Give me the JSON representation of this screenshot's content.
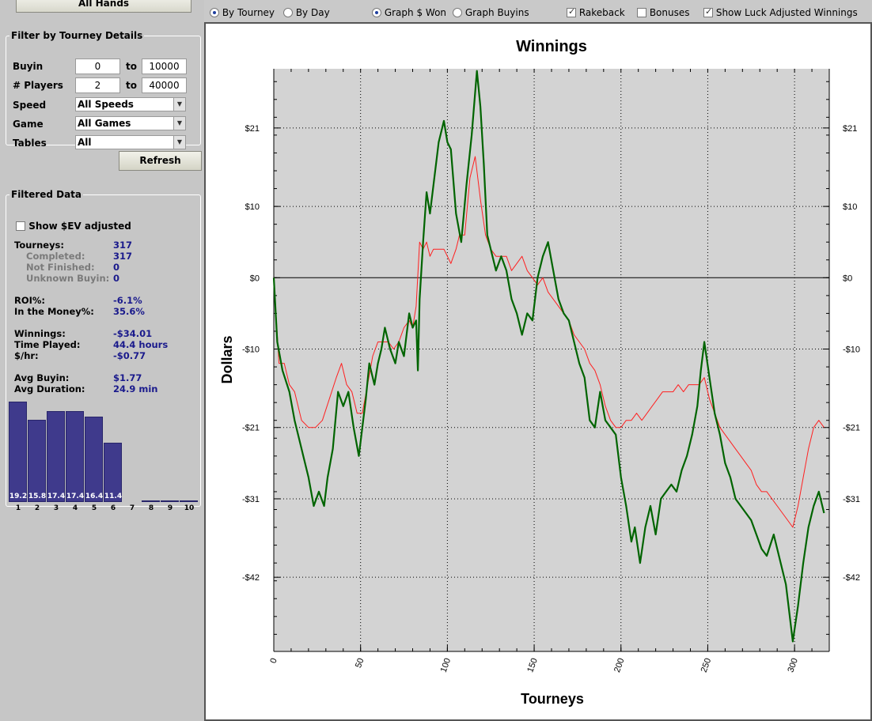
{
  "left_panel": {
    "all_hands_label": "All Hands",
    "filter_group": {
      "legend": "Filter by Tourney Details",
      "buyin": {
        "label": "Buyin",
        "from": "0",
        "to_label": "to",
        "to": "10000"
      },
      "players": {
        "label": "# Players",
        "from": "2",
        "to_label": "to",
        "to": "40000"
      },
      "speed": {
        "label": "Speed",
        "value": "All Speeds"
      },
      "game": {
        "label": "Game",
        "value": "All Games"
      },
      "tables": {
        "label": "Tables",
        "value": "All"
      }
    },
    "refresh_label": "Refresh",
    "filtered_group": {
      "legend": "Filtered Data",
      "show_ev_label": "Show $EV adjusted",
      "stats": [
        {
          "label": "Tourneys:",
          "value": "317",
          "sub": false
        },
        {
          "label": "Completed:",
          "value": "317",
          "sub": true
        },
        {
          "label": "Not Finished:",
          "value": "0",
          "sub": true
        },
        {
          "label": "Unknown Buyin:",
          "value": "0",
          "sub": true
        },
        {
          "label": "ROI%:",
          "value": "-6.1%",
          "sub": false
        },
        {
          "label": "In the Money%:",
          "value": "35.6%",
          "sub": false
        },
        {
          "label": "Winnings:",
          "value": "-$34.01",
          "sub": false
        },
        {
          "label": "Time Played:",
          "value": "44.4 hours",
          "sub": false
        },
        {
          "label": "$/hr:",
          "value": "-$0.77",
          "sub": false
        },
        {
          "label": "Avg Buyin:",
          "value": "$1.77",
          "sub": false
        },
        {
          "label": "Avg Duration:",
          "value": "24.9 min",
          "sub": false
        }
      ],
      "histogram": {
        "categories": [
          "1",
          "2",
          "3",
          "4",
          "5",
          "6",
          "7",
          "8",
          "9",
          "10"
        ],
        "values": [
          19.2,
          15.8,
          17.4,
          17.4,
          16.4,
          11.4,
          0,
          0.3,
          0.3,
          0.3
        ],
        "labels": [
          "19.2",
          "15.8",
          "17.4",
          "17.4",
          "16.4",
          "11.4",
          "",
          "",
          "",
          ""
        ],
        "color": "#3f3a8c"
      }
    }
  },
  "toolbar": {
    "by_tourney": "By Tourney",
    "by_day": "By Day",
    "graph_won": "Graph $ Won",
    "graph_buyins": "Graph Buyins",
    "rakeback": "Rakeback",
    "bonuses": "Bonuses",
    "luck_adjusted": "Show Luck Adjusted Winnings"
  },
  "chart_data": {
    "type": "line",
    "title": "Winnings",
    "xlabel": "Tourneys",
    "ylabel": "Dollars",
    "xlim": [
      0,
      320
    ],
    "ylim": [
      -52.4,
      29.3
    ],
    "x_ticks": [
      0,
      50,
      100,
      150,
      200,
      250,
      300
    ],
    "y_ticks": [
      21,
      10,
      0,
      -10,
      -21,
      -31,
      -42
    ],
    "y_tick_labels": [
      "$21",
      "$10",
      "$0",
      "-$10",
      "-$21",
      "-$31",
      "-$42"
    ],
    "grid": true,
    "background": "#d3d3d3",
    "series": [
      {
        "color": "#006400",
        "points": [
          [
            0,
            0
          ],
          [
            2,
            -9
          ],
          [
            5,
            -13
          ],
          [
            9,
            -16
          ],
          [
            12,
            -20
          ],
          [
            15,
            -23
          ],
          [
            18,
            -26
          ],
          [
            20,
            -28
          ],
          [
            23,
            -32
          ],
          [
            26,
            -30
          ],
          [
            29,
            -32
          ],
          [
            31,
            -28
          ],
          [
            34,
            -24
          ],
          [
            37,
            -16
          ],
          [
            40,
            -18
          ],
          [
            43,
            -16
          ],
          [
            46,
            -21
          ],
          [
            49,
            -25
          ],
          [
            51,
            -21
          ],
          [
            53,
            -17
          ],
          [
            55,
            -12
          ],
          [
            58,
            -15
          ],
          [
            60,
            -12
          ],
          [
            62,
            -10
          ],
          [
            64,
            -7
          ],
          [
            67,
            -10
          ],
          [
            70,
            -12
          ],
          [
            72,
            -9
          ],
          [
            75,
            -11
          ],
          [
            78,
            -5
          ],
          [
            80,
            -7
          ],
          [
            82,
            -6
          ],
          [
            83,
            -13
          ],
          [
            84,
            -3
          ],
          [
            86,
            5
          ],
          [
            88,
            12
          ],
          [
            90,
            9
          ],
          [
            92,
            13
          ],
          [
            95,
            19
          ],
          [
            98,
            22
          ],
          [
            100,
            19
          ],
          [
            102,
            18
          ],
          [
            105,
            9
          ],
          [
            108,
            5
          ],
          [
            111,
            13
          ],
          [
            114,
            20
          ],
          [
            117,
            29
          ],
          [
            119,
            24
          ],
          [
            121,
            16
          ],
          [
            123,
            6
          ],
          [
            126,
            3
          ],
          [
            128,
            1
          ],
          [
            131,
            3
          ],
          [
            134,
            1
          ],
          [
            137,
            -3
          ],
          [
            140,
            -5
          ],
          [
            143,
            -8
          ],
          [
            146,
            -5
          ],
          [
            149,
            -6
          ],
          [
            152,
            0
          ],
          [
            155,
            3
          ],
          [
            158,
            5
          ],
          [
            161,
            1
          ],
          [
            164,
            -3
          ],
          [
            167,
            -5
          ],
          [
            170,
            -6
          ],
          [
            173,
            -9
          ],
          [
            176,
            -12
          ],
          [
            179,
            -14
          ],
          [
            182,
            -20
          ],
          [
            185,
            -21
          ],
          [
            188,
            -16
          ],
          [
            191,
            -20
          ],
          [
            194,
            -21
          ],
          [
            197,
            -22
          ],
          [
            200,
            -28
          ],
          [
            203,
            -32
          ],
          [
            206,
            -37
          ],
          [
            208,
            -35
          ],
          [
            211,
            -40
          ],
          [
            214,
            -35
          ],
          [
            217,
            -32
          ],
          [
            220,
            -36
          ],
          [
            223,
            -31
          ],
          [
            226,
            -30
          ],
          [
            229,
            -29
          ],
          [
            232,
            -30
          ],
          [
            235,
            -27
          ],
          [
            238,
            -25
          ],
          [
            241,
            -22
          ],
          [
            244,
            -18
          ],
          [
            246,
            -13
          ],
          [
            248,
            -9
          ],
          [
            251,
            -14
          ],
          [
            254,
            -19
          ],
          [
            257,
            -22
          ],
          [
            260,
            -26
          ],
          [
            263,
            -28
          ],
          [
            266,
            -31
          ],
          [
            269,
            -32
          ],
          [
            272,
            -33
          ],
          [
            275,
            -34
          ],
          [
            278,
            -36
          ],
          [
            281,
            -38
          ],
          [
            284,
            -39
          ],
          [
            288,
            -36
          ],
          [
            291,
            -39
          ],
          [
            295,
            -43
          ],
          [
            299,
            -51
          ],
          [
            302,
            -46
          ],
          [
            305,
            -40
          ],
          [
            308,
            -35
          ],
          [
            311,
            -32
          ],
          [
            314,
            -30
          ],
          [
            317,
            -33
          ]
        ]
      },
      {
        "color": "#ff2020",
        "points": [
          [
            0,
            0
          ],
          [
            3,
            -12
          ],
          [
            6,
            -12
          ],
          [
            9,
            -15
          ],
          [
            12,
            -16
          ],
          [
            16,
            -20
          ],
          [
            20,
            -21
          ],
          [
            24,
            -21
          ],
          [
            28,
            -20
          ],
          [
            32,
            -17
          ],
          [
            36,
            -14
          ],
          [
            39,
            -12
          ],
          [
            42,
            -15
          ],
          [
            45,
            -16
          ],
          [
            48,
            -19
          ],
          [
            51,
            -19
          ],
          [
            54,
            -15
          ],
          [
            57,
            -11
          ],
          [
            60,
            -9
          ],
          [
            63,
            -9
          ],
          [
            66,
            -9
          ],
          [
            69,
            -10
          ],
          [
            72,
            -9
          ],
          [
            75,
            -7
          ],
          [
            78,
            -6
          ],
          [
            80,
            -7
          ],
          [
            82,
            -4
          ],
          [
            84,
            5
          ],
          [
            86,
            4
          ],
          [
            88,
            5
          ],
          [
            90,
            3
          ],
          [
            92,
            4
          ],
          [
            95,
            4
          ],
          [
            98,
            4
          ],
          [
            100,
            3
          ],
          [
            102,
            2
          ],
          [
            105,
            4
          ],
          [
            107,
            6
          ],
          [
            110,
            6
          ],
          [
            113,
            14
          ],
          [
            116,
            17
          ],
          [
            119,
            11
          ],
          [
            122,
            6
          ],
          [
            125,
            4
          ],
          [
            128,
            3
          ],
          [
            131,
            3
          ],
          [
            134,
            3
          ],
          [
            137,
            1
          ],
          [
            140,
            2
          ],
          [
            143,
            3
          ],
          [
            146,
            1
          ],
          [
            149,
            0
          ],
          [
            152,
            -1
          ],
          [
            155,
            0
          ],
          [
            158,
            -2
          ],
          [
            161,
            -3
          ],
          [
            164,
            -4
          ],
          [
            167,
            -5
          ],
          [
            170,
            -6
          ],
          [
            173,
            -8
          ],
          [
            176,
            -9
          ],
          [
            179,
            -10
          ],
          [
            182,
            -12
          ],
          [
            185,
            -13
          ],
          [
            188,
            -15
          ],
          [
            191,
            -18
          ],
          [
            194,
            -20
          ],
          [
            197,
            -21
          ],
          [
            200,
            -21
          ],
          [
            203,
            -20
          ],
          [
            206,
            -20
          ],
          [
            209,
            -19
          ],
          [
            212,
            -20
          ],
          [
            215,
            -19
          ],
          [
            218,
            -18
          ],
          [
            221,
            -17
          ],
          [
            224,
            -16
          ],
          [
            227,
            -16
          ],
          [
            230,
            -16
          ],
          [
            233,
            -15
          ],
          [
            236,
            -16
          ],
          [
            239,
            -15
          ],
          [
            242,
            -15
          ],
          [
            245,
            -15
          ],
          [
            248,
            -14
          ],
          [
            251,
            -17
          ],
          [
            254,
            -19
          ],
          [
            257,
            -21
          ],
          [
            260,
            -22
          ],
          [
            263,
            -23
          ],
          [
            266,
            -24
          ],
          [
            269,
            -25
          ],
          [
            272,
            -26
          ],
          [
            275,
            -27
          ],
          [
            278,
            -29
          ],
          [
            281,
            -30
          ],
          [
            284,
            -30
          ],
          [
            287,
            -31
          ],
          [
            290,
            -32
          ],
          [
            293,
            -33
          ],
          [
            296,
            -34
          ],
          [
            299,
            -35
          ],
          [
            302,
            -32
          ],
          [
            305,
            -28
          ],
          [
            308,
            -24
          ],
          [
            311,
            -21
          ],
          [
            314,
            -20
          ],
          [
            317,
            -21
          ]
        ]
      }
    ]
  }
}
